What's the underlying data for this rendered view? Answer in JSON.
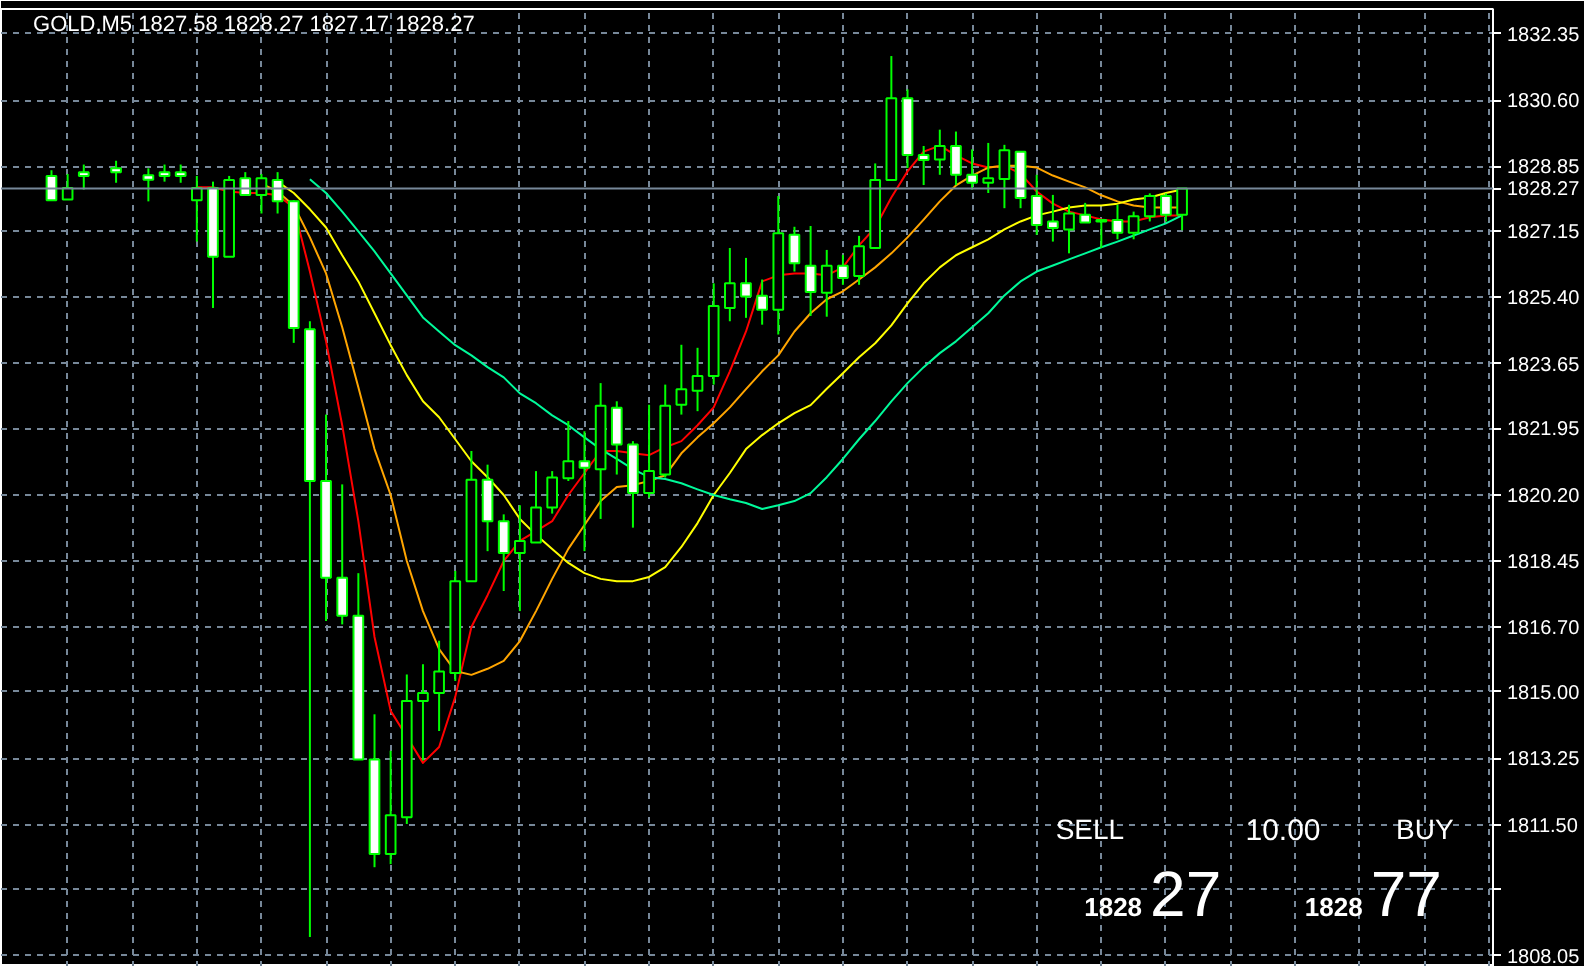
{
  "chart_data": {
    "type": "candlestick",
    "title": "GOLD,M5 1827.58 1828.27 1827.17 1828.27",
    "categories": [
      null,
      null,
      null,
      null,
      null,
      null,
      null,
      null,
      null,
      null,
      null,
      null,
      null,
      null,
      null,
      null,
      null,
      null,
      null,
      null,
      null,
      null,
      null,
      null,
      null,
      null,
      null,
      null,
      null,
      null,
      null,
      null,
      null,
      null,
      null,
      null,
      null,
      null,
      null,
      null,
      null,
      null,
      null,
      null,
      null,
      null,
      null,
      null,
      null,
      null,
      null,
      null,
      null,
      null,
      null,
      null,
      null,
      null,
      null,
      null,
      null,
      null,
      null,
      null,
      null,
      null,
      null,
      null,
      null,
      null,
      null
    ],
    "ohlc": [
      [
        1828.6,
        1828.75,
        1827.96,
        1827.96
      ],
      [
        1827.98,
        1828.65,
        1827.98,
        1828.28
      ],
      [
        1828.7,
        1828.9,
        1828.24,
        1828.6
      ],
      null,
      [
        1828.8,
        1829.0,
        1828.42,
        1828.7
      ],
      null,
      [
        1828.62,
        1828.8,
        1827.93,
        1828.5
      ],
      [
        1828.7,
        1828.9,
        1828.45,
        1828.6
      ],
      [
        1828.7,
        1828.9,
        1828.42,
        1828.6
      ],
      [
        1827.96,
        1828.6,
        1826.87,
        1828.28
      ],
      [
        1828.28,
        1828.45,
        1825.12,
        1826.47
      ],
      [
        1826.47,
        1828.6,
        1826.47,
        1828.49
      ],
      [
        1828.54,
        1828.7,
        1828.1,
        1828.1
      ],
      [
        1828.1,
        1828.65,
        1827.61,
        1828.54
      ],
      [
        1828.49,
        1828.7,
        1827.61,
        1827.93
      ],
      [
        1827.93,
        1827.96,
        1824.2,
        1824.59
      ],
      [
        1824.56,
        1824.77,
        1808.54,
        1820.56
      ],
      [
        1820.56,
        1822.31,
        1816.87,
        1818.01
      ],
      [
        1818.01,
        1820.47,
        1816.78,
        1817.01
      ],
      [
        1817.01,
        1818.13,
        1813.22,
        1813.22
      ],
      [
        1813.22,
        1814.41,
        1810.38,
        1810.73
      ],
      [
        1810.73,
        1813.45,
        1810.46,
        1811.75
      ],
      [
        1811.7,
        1815.46,
        1811.52,
        1814.76
      ],
      [
        1814.76,
        1815.73,
        1813.19,
        1814.97
      ],
      [
        1814.97,
        1816.35,
        1813.97,
        1815.54
      ],
      [
        1815.5,
        1818.19,
        1815.29,
        1817.92
      ],
      [
        1817.92,
        1821.35,
        1817.92,
        1820.59
      ],
      [
        1820.59,
        1820.99,
        1818.71,
        1819.5
      ],
      [
        1819.5,
        1819.68,
        1817.66,
        1818.66
      ],
      [
        1818.66,
        1819.92,
        1817.13,
        1818.98
      ],
      [
        1818.94,
        1820.82,
        1818.94,
        1819.86
      ],
      [
        1819.86,
        1820.82,
        1819.7,
        1820.65
      ],
      [
        1820.63,
        1822.14,
        1820.56,
        1821.08
      ],
      [
        1821.08,
        1821.87,
        1818.71,
        1820.91
      ],
      [
        1820.87,
        1823.14,
        1819.56,
        1822.54
      ],
      [
        1822.49,
        1822.66,
        1820.73,
        1821.52
      ],
      [
        1821.52,
        1821.61,
        1819.33,
        1820.24
      ],
      [
        1820.24,
        1822.57,
        1820.12,
        1820.82
      ],
      [
        1820.73,
        1823.1,
        1820.65,
        1822.54
      ],
      [
        1822.57,
        1824.15,
        1822.31,
        1822.98
      ],
      [
        1822.94,
        1824.07,
        1822.4,
        1823.33
      ],
      [
        1823.33,
        1825.77,
        1823.1,
        1825.17
      ],
      [
        1825.12,
        1826.7,
        1824.77,
        1825.77
      ],
      [
        1825.77,
        1826.44,
        1824.86,
        1825.42
      ],
      [
        1825.44,
        1825.87,
        1824.68,
        1825.07
      ],
      [
        1825.07,
        1828.07,
        1824.42,
        1827.09
      ],
      [
        1827.05,
        1827.26,
        1826.08,
        1826.3
      ],
      [
        1826.23,
        1827.28,
        1824.91,
        1825.54
      ],
      [
        1825.52,
        1826.65,
        1824.89,
        1826.23
      ],
      [
        1826.23,
        1826.52,
        1825.73,
        1825.91
      ],
      [
        1825.96,
        1827.02,
        1825.73,
        1826.75
      ],
      [
        1826.7,
        1828.93,
        1826.7,
        1828.49
      ],
      [
        1828.49,
        1831.76,
        1828.49,
        1830.65
      ],
      [
        1830.65,
        1830.88,
        1828.81,
        1829.15
      ],
      [
        1829.15,
        1829.39,
        1828.36,
        1829.02
      ],
      [
        1829.03,
        1829.82,
        1828.63,
        1829.39
      ],
      [
        1829.39,
        1829.77,
        1828.36,
        1828.63
      ],
      [
        1828.63,
        1829.3,
        1828.24,
        1828.42
      ],
      [
        1828.42,
        1829.47,
        1828.15,
        1828.54
      ],
      [
        1828.52,
        1829.42,
        1827.75,
        1829.28
      ],
      [
        1829.24,
        1829.24,
        1827.75,
        1828.02
      ],
      [
        1828.07,
        1828.63,
        1827.05,
        1827.31
      ],
      [
        1827.4,
        1828.1,
        1826.87,
        1827.23
      ],
      [
        1827.19,
        1827.84,
        1826.56,
        1827.61
      ],
      [
        1827.58,
        1827.89,
        1827.37,
        1827.37
      ],
      [
        1827.44,
        1827.44,
        1826.7,
        1827.4
      ],
      [
        1827.44,
        1827.84,
        1826.93,
        1827.1
      ],
      [
        1827.1,
        1827.66,
        1826.93,
        1827.54
      ],
      [
        1827.54,
        1828.14,
        1827.4,
        1828.07
      ],
      [
        1828.07,
        1828.14,
        1827.4,
        1827.58
      ],
      [
        1827.58,
        1828.27,
        1827.17,
        1828.27
      ]
    ],
    "color": "#00ff00",
    "colors": [
      "#ffffff",
      "#000000",
      "#ffffff",
      null,
      "#ffffff",
      null,
      "#ffffff",
      "#ffffff",
      "#ffffff",
      "#000000",
      "#ffffff",
      "#000000",
      "#ffffff",
      "#000000",
      "#ffffff",
      "#ffffff",
      "#ffffff",
      "#ffffff",
      "#ffffff",
      "#ffffff",
      "#ffffff",
      "#000000",
      "#000000",
      "#000000",
      "#000000",
      "#000000",
      "#000000",
      "#ffffff",
      "#ffffff",
      "#000000",
      "#000000",
      "#000000",
      "#000000",
      "#ffffff",
      "#000000",
      "#ffffff",
      "#ffffff",
      "#000000",
      "#000000",
      "#000000",
      "#000000",
      "#000000",
      "#000000",
      "#ffffff",
      "#ffffff",
      "#000000",
      "#ffffff",
      "#ffffff",
      "#000000",
      "#ffffff",
      "#000000",
      "#000000",
      "#000000",
      "#ffffff",
      "#ffffff",
      "#000000",
      "#ffffff",
      "#ffffff",
      "#000000",
      "#000000",
      "#ffffff",
      "#ffffff",
      "#ffffff",
      "#000000",
      "#ffffff",
      "#ffffff",
      "#ffffff",
      "#000000",
      "#000000",
      "#ffffff",
      "#000000"
    ],
    "series": [
      {
        "type": "line",
        "color": "#ff0000",
        "values": [
          null,
          null,
          null,
          null,
          null,
          null,
          null,
          null,
          null,
          1828.3,
          1828.3,
          1828.19,
          1828.15,
          1828.15,
          1828.09,
          1827.77,
          1826.08,
          1824.24,
          1822.03,
          1819.5,
          1816.45,
          1814.5,
          1813.82,
          1813.13,
          1813.55,
          1814.87,
          1816.71,
          1817.55,
          1818.45,
          1818.98,
          1819.24,
          1819.5,
          1820.19,
          1820.77,
          1821.35,
          1821.35,
          1821.29,
          1821.24,
          1821.45,
          1821.61,
          1822.03,
          1822.5,
          1823.45,
          1824.5,
          1825.82,
          1825.98,
          1826.03,
          1826.03,
          1825.98,
          1826.19,
          1826.77,
          1827.24,
          1828.03,
          1828.72,
          1829.24,
          1829.4,
          1829.14,
          1828.93,
          1828.82,
          1828.87,
          1828.66,
          1828.19,
          1827.87,
          1827.66,
          1827.56,
          1827.45,
          1827.4,
          1827.4,
          1827.51,
          1827.56,
          1827.56
        ]
      },
      {
        "type": "line",
        "color": "#ffa500",
        "values": [
          null,
          null,
          null,
          null,
          null,
          null,
          null,
          null,
          null,
          null,
          null,
          null,
          null,
          1828.4,
          1828.19,
          1827.82,
          1826.98,
          1826.03,
          1824.61,
          1823.03,
          1821.4,
          1820.19,
          1818.45,
          1817.13,
          1816.13,
          1815.55,
          1815.45,
          1815.61,
          1815.82,
          1816.34,
          1817.13,
          1817.98,
          1818.77,
          1819.4,
          1820.03,
          1820.4,
          1820.45,
          1820.56,
          1820.71,
          1821.29,
          1821.71,
          1822.08,
          1822.5,
          1822.98,
          1823.45,
          1823.87,
          1824.5,
          1824.98,
          1825.35,
          1825.56,
          1825.87,
          1826.19,
          1826.56,
          1826.98,
          1827.45,
          1827.93,
          1828.35,
          1828.61,
          1828.82,
          1828.87,
          1828.87,
          1828.82,
          1828.61,
          1828.45,
          1828.3,
          1828.09,
          1827.93,
          1827.82,
          1827.77,
          1827.77,
          1827.77
        ]
      },
      {
        "type": "line",
        "color": "#ffff00",
        "values": [
          null,
          null,
          null,
          null,
          null,
          null,
          null,
          null,
          null,
          null,
          null,
          null,
          null,
          null,
          1828.45,
          1828.15,
          1827.72,
          1827.24,
          1826.51,
          1825.82,
          1824.98,
          1824.14,
          1823.35,
          1822.66,
          1822.24,
          1821.66,
          1821.08,
          1820.66,
          1820.19,
          1819.56,
          1819.14,
          1818.77,
          1818.4,
          1818.13,
          1817.98,
          1817.92,
          1817.92,
          1818.03,
          1818.29,
          1818.82,
          1819.45,
          1820.19,
          1820.77,
          1821.4,
          1821.77,
          1822.08,
          1822.35,
          1822.56,
          1822.99,
          1823.4,
          1823.82,
          1824.19,
          1824.66,
          1825.24,
          1825.77,
          1826.19,
          1826.51,
          1826.72,
          1826.93,
          1827.19,
          1827.4,
          1827.56,
          1827.66,
          1827.77,
          1827.82,
          1827.82,
          1827.87,
          1827.98,
          1828.03,
          1828.15,
          1828.24
        ]
      },
      {
        "type": "line",
        "color": "#00fa9a",
        "values": [
          null,
          null,
          null,
          null,
          null,
          null,
          null,
          null,
          null,
          null,
          null,
          null,
          null,
          null,
          null,
          null,
          1828.51,
          1828.15,
          1827.66,
          1827.14,
          1826.61,
          1826.03,
          1825.45,
          1824.87,
          1824.5,
          1824.14,
          1823.87,
          1823.56,
          1823.29,
          1822.87,
          1822.61,
          1822.29,
          1822.03,
          1821.71,
          1821.4,
          1821.14,
          1820.87,
          1820.66,
          1820.61,
          1820.5,
          1820.34,
          1820.19,
          1820.08,
          1819.98,
          1819.82,
          1819.92,
          1820.03,
          1820.24,
          1820.66,
          1821.14,
          1821.66,
          1822.14,
          1822.66,
          1823.14,
          1823.56,
          1823.93,
          1824.24,
          1824.61,
          1824.98,
          1825.45,
          1825.82,
          1826.08,
          1826.24,
          1826.4,
          1826.56,
          1826.72,
          1826.87,
          1827.03,
          1827.19,
          1827.35,
          1827.56
        ]
      }
    ],
    "ylim": [
      1807.75,
      1833.0
    ],
    "yticks": [
      1832.35,
      {
        "value": 1830.6,
        "label": "1830.60"
      },
      1828.85,
      1827.15,
      {
        "value": 1825.4,
        "label": "1825.40"
      },
      1823.65,
      1821.95,
      {
        "value": 1820.2,
        "label": "1820.20"
      },
      1818.45,
      {
        "value": 1816.7,
        "label": "1816.70"
      },
      {
        "value": 1815.0,
        "label": "1815.00"
      },
      1813.25,
      {
        "value": 1811.5,
        "label": "1811.50"
      },
      {
        "value": 1809.8,
        "label": null
      },
      1808.05
    ],
    "grid": true,
    "ref_lines": [
      {
        "axis": "y",
        "value": 1828.27,
        "label": "1828.27",
        "color": "#778899"
      }
    ],
    "annotations": [
      "SELL",
      "10.00",
      "BUY",
      "1828",
      "27",
      "1828",
      "77"
    ]
  }
}
